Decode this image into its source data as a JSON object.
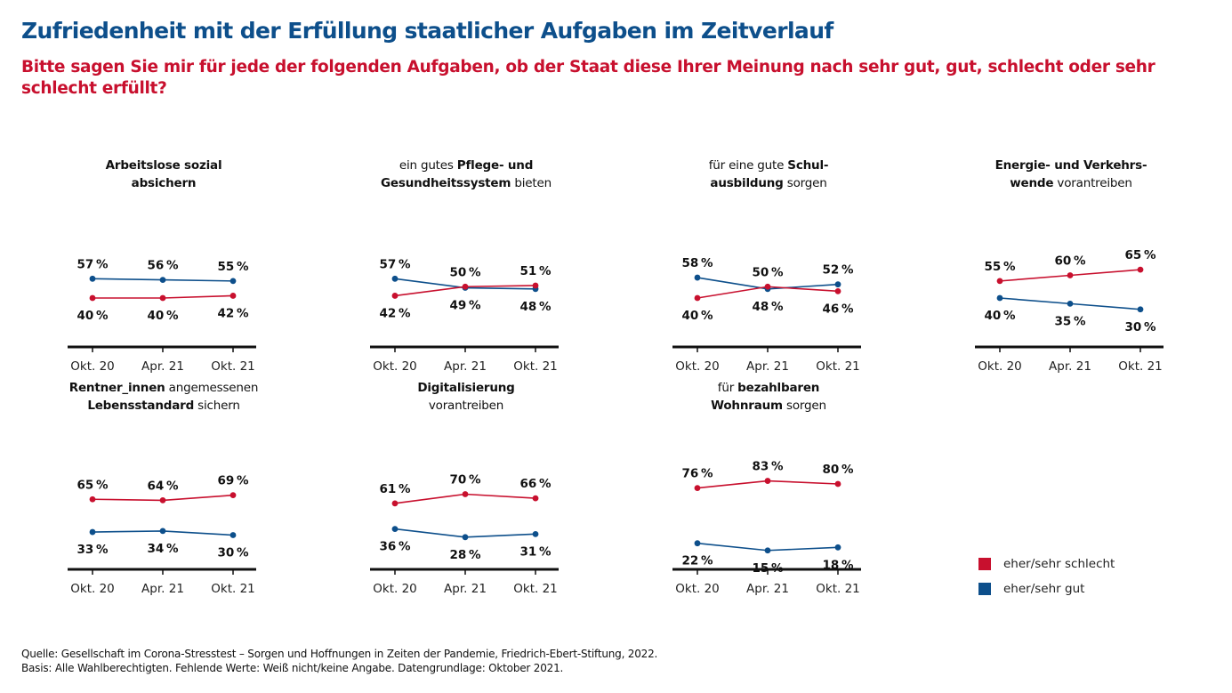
{
  "header": {
    "title": "Zufriedenheit mit der Erfüllung staatlicher Aufgaben im Zeitverlauf",
    "subtitle": "Bitte sagen Sie mir für jede der folgenden Aufgaben, ob der Staat diese Ihrer Meinung nach sehr gut, gut, schlecht oder sehr schlecht erfüllt?"
  },
  "colors": {
    "schlecht": "#c8102e",
    "gut": "#0d4f8b",
    "title": "#0d4f8b",
    "subtitle": "#c8102e"
  },
  "legend": [
    {
      "label": "eher/sehr schlecht",
      "color": "#c8102e"
    },
    {
      "label": "eher/sehr gut",
      "color": "#0d4f8b"
    }
  ],
  "footer": {
    "source": "Quelle: Gesellschaft im Corona-Stresstest – Sorgen und Hoffnungen in Zeiten der Pandemie, Friedrich-Ebert-Stiftung, 2022.",
    "basis": "Basis: Alle Wahlberechtigten. Fehlende Werte: Weiß nicht/keine Angabe. Datengrundlage: Oktober 2021."
  },
  "chart_data": [
    {
      "type": "line",
      "title_parts": [
        {
          "text": "Arbeitslose sozial",
          "bold": true
        },
        {
          "text": "\n",
          "bold": false
        },
        {
          "text": "absichern",
          "bold": true
        }
      ],
      "title": "Arbeitslose sozial absichern",
      "categories": [
        "Okt. 20",
        "Apr. 21",
        "Okt. 21"
      ],
      "series": [
        {
          "name": "eher/sehr gut",
          "values": [
            57,
            56,
            55
          ]
        },
        {
          "name": "eher/sehr schlecht",
          "values": [
            40,
            40,
            42
          ]
        }
      ],
      "unit": "%",
      "ylim": [
        0,
        100
      ]
    },
    {
      "type": "line",
      "title_parts": [
        {
          "text": "ein gutes ",
          "bold": false
        },
        {
          "text": "Pflege- und",
          "bold": true
        },
        {
          "text": "\n",
          "bold": false
        },
        {
          "text": "Gesundheitssystem",
          "bold": true
        },
        {
          "text": " bieten",
          "bold": false
        }
      ],
      "title": "ein gutes Pflege- und Gesundheitssystem bieten",
      "categories": [
        "Okt. 20",
        "Apr. 21",
        "Okt. 21"
      ],
      "series": [
        {
          "name": "eher/sehr gut",
          "values": [
            57,
            49,
            48
          ]
        },
        {
          "name": "eher/sehr schlecht",
          "values": [
            42,
            50,
            51
          ]
        }
      ],
      "unit": "%",
      "ylim": [
        0,
        100
      ]
    },
    {
      "type": "line",
      "title_parts": [
        {
          "text": "für eine gute ",
          "bold": false
        },
        {
          "text": "Schul-",
          "bold": true
        },
        {
          "text": "\n",
          "bold": false
        },
        {
          "text": "ausbildung",
          "bold": true
        },
        {
          "text": " sorgen",
          "bold": false
        }
      ],
      "title": "für eine gute Schulausbildung sorgen",
      "categories": [
        "Okt. 20",
        "Apr. 21",
        "Okt. 21"
      ],
      "series": [
        {
          "name": "eher/sehr gut",
          "values": [
            58,
            48,
            52
          ]
        },
        {
          "name": "eher/sehr schlecht",
          "values": [
            40,
            50,
            46
          ]
        }
      ],
      "unit": "%",
      "ylim": [
        0,
        100
      ]
    },
    {
      "type": "line",
      "title_parts": [
        {
          "text": "Energie- und Verkehrs-",
          "bold": true
        },
        {
          "text": "\n",
          "bold": false
        },
        {
          "text": "wende",
          "bold": true
        },
        {
          "text": " vorantreiben",
          "bold": false
        }
      ],
      "title": "Energie- und Verkehrswende vorantreiben",
      "categories": [
        "Okt. 20",
        "Apr. 21",
        "Okt. 21"
      ],
      "series": [
        {
          "name": "eher/sehr gut",
          "values": [
            40,
            35,
            30
          ]
        },
        {
          "name": "eher/sehr schlecht",
          "values": [
            55,
            60,
            65
          ]
        }
      ],
      "unit": "%",
      "ylim": [
        0,
        100
      ]
    },
    {
      "type": "line",
      "title_parts": [
        {
          "text": "Rentner_innen",
          "bold": true
        },
        {
          "text": " angemessenen",
          "bold": false
        },
        {
          "text": "\n",
          "bold": false
        },
        {
          "text": "Lebensstandard",
          "bold": true
        },
        {
          "text": " sichern",
          "bold": false
        }
      ],
      "title": "Rentner_innen angemessenen Lebensstandard sichern",
      "categories": [
        "Okt. 20",
        "Apr. 21",
        "Okt. 21"
      ],
      "series": [
        {
          "name": "eher/sehr gut",
          "values": [
            33,
            34,
            30
          ]
        },
        {
          "name": "eher/sehr schlecht",
          "values": [
            65,
            64,
            69
          ]
        }
      ],
      "unit": "%",
      "ylim": [
        0,
        100
      ]
    },
    {
      "type": "line",
      "title_parts": [
        {
          "text": "Digitalisierung",
          "bold": true
        },
        {
          "text": "\n",
          "bold": false
        },
        {
          "text": "vorantreiben",
          "bold": false
        }
      ],
      "title": "Digitalisierung vorantreiben",
      "categories": [
        "Okt. 20",
        "Apr. 21",
        "Okt. 21"
      ],
      "series": [
        {
          "name": "eher/sehr gut",
          "values": [
            36,
            28,
            31
          ]
        },
        {
          "name": "eher/sehr schlecht",
          "values": [
            61,
            70,
            66
          ]
        }
      ],
      "unit": "%",
      "ylim": [
        0,
        100
      ]
    },
    {
      "type": "line",
      "title_parts": [
        {
          "text": "für ",
          "bold": false
        },
        {
          "text": "bezahlbaren",
          "bold": true
        },
        {
          "text": "\n",
          "bold": false
        },
        {
          "text": "Wohnraum",
          "bold": true
        },
        {
          "text": " sorgen",
          "bold": false
        }
      ],
      "title": "für bezahlbaren Wohnraum sorgen",
      "categories": [
        "Okt. 20",
        "Apr. 21",
        "Okt. 21"
      ],
      "series": [
        {
          "name": "eher/sehr gut",
          "values": [
            22,
            15,
            18
          ]
        },
        {
          "name": "eher/sehr schlecht",
          "values": [
            76,
            83,
            80
          ]
        }
      ],
      "unit": "%",
      "ylim": [
        0,
        100
      ]
    }
  ]
}
